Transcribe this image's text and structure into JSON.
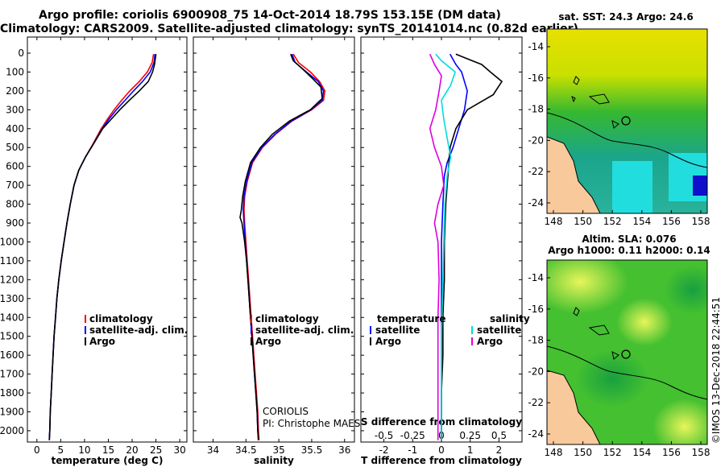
{
  "title_line1": "Argo profile: coriolis 6900908_75 14-Oct-2014 18.79S 153.15E (DM data)",
  "title_line2": "Climatology: CARS2009. Satellite-adjusted climatology: synTS_20141014.nc (0.82d earlier)",
  "colors": {
    "climatology": "#ff0000",
    "satellite": "#0000ff",
    "argo": "#000000",
    "s_satellite": "#00dddd",
    "s_argo": "#dd00dd"
  },
  "chart_data": [
    {
      "id": "temperature",
      "type": "line",
      "xlabel": "temperature (deg C)",
      "xlim": [
        -2,
        31.5
      ],
      "xticks": [
        0,
        5,
        10,
        15,
        20,
        25,
        30
      ],
      "ylim": [
        0,
        2060
      ],
      "yticks": [
        0,
        100,
        200,
        300,
        400,
        500,
        600,
        700,
        800,
        900,
        1000,
        1100,
        1200,
        1300,
        1400,
        1500,
        1600,
        1700,
        1800,
        1900,
        2000
      ],
      "legend": [
        "climatology",
        "satellite-adj. clim.",
        "Argo"
      ],
      "series": [
        {
          "name": "climatology",
          "color": "#ff0000",
          "points": [
            [
              24.5,
              5
            ],
            [
              24.2,
              50
            ],
            [
              23.2,
              100
            ],
            [
              21.5,
              150
            ],
            [
              19.5,
              200
            ],
            [
              17.8,
              250
            ],
            [
              16.2,
              300
            ],
            [
              14.8,
              350
            ],
            [
              13.5,
              400
            ],
            [
              11.8,
              480
            ],
            [
              10.2,
              550
            ],
            [
              8.8,
              620
            ],
            [
              7.8,
              700
            ],
            [
              7,
              800
            ],
            [
              6.3,
              900
            ],
            [
              5.7,
              1000
            ],
            [
              5.1,
              1100
            ],
            [
              4.6,
              1200
            ],
            [
              4.2,
              1300
            ],
            [
              3.9,
              1400
            ],
            [
              3.6,
              1500
            ],
            [
              3.4,
              1600
            ],
            [
              3.2,
              1700
            ],
            [
              3,
              1800
            ],
            [
              2.8,
              1900
            ],
            [
              2.7,
              2000
            ],
            [
              2.6,
              2050
            ]
          ]
        },
        {
          "name": "satellite-adj. clim.",
          "color": "#0000ff",
          "points": [
            [
              24.8,
              5
            ],
            [
              24.6,
              50
            ],
            [
              23.8,
              100
            ],
            [
              22.2,
              150
            ],
            [
              20.3,
              200
            ],
            [
              18.5,
              250
            ],
            [
              16.7,
              300
            ],
            [
              15.1,
              350
            ],
            [
              13.7,
              400
            ],
            [
              11.9,
              480
            ],
            [
              10.2,
              550
            ],
            [
              8.8,
              620
            ],
            [
              7.8,
              700
            ],
            [
              7,
              800
            ],
            [
              6.3,
              900
            ],
            [
              5.7,
              1000
            ],
            [
              5.1,
              1100
            ],
            [
              4.6,
              1200
            ],
            [
              4.2,
              1300
            ],
            [
              3.9,
              1400
            ],
            [
              3.6,
              1500
            ],
            [
              3.4,
              1600
            ],
            [
              3.2,
              1700
            ],
            [
              3,
              1800
            ],
            [
              2.8,
              1900
            ],
            [
              2.7,
              2000
            ],
            [
              2.6,
              2050
            ]
          ]
        },
        {
          "name": "Argo",
          "color": "#000000",
          "points": [
            [
              25,
              5
            ],
            [
              24.7,
              60
            ],
            [
              24.3,
              100
            ],
            [
              23.4,
              150
            ],
            [
              21.5,
              200
            ],
            [
              19.4,
              250
            ],
            [
              17.4,
              300
            ],
            [
              15.6,
              350
            ],
            [
              13.8,
              400
            ],
            [
              11.9,
              480
            ],
            [
              10.2,
              550
            ],
            [
              8.8,
              620
            ],
            [
              7.8,
              700
            ],
            [
              7,
              800
            ],
            [
              6.3,
              900
            ],
            [
              5.7,
              1000
            ],
            [
              5.1,
              1100
            ],
            [
              4.6,
              1200
            ],
            [
              4.2,
              1300
            ],
            [
              3.9,
              1400
            ],
            [
              3.6,
              1500
            ],
            [
              3.4,
              1600
            ],
            [
              3.2,
              1700
            ],
            [
              3,
              1800
            ],
            [
              2.8,
              1900
            ],
            [
              2.7,
              2000
            ],
            [
              2.6,
              2050
            ]
          ]
        }
      ]
    },
    {
      "id": "salinity",
      "type": "line",
      "xlabel": "salinity",
      "xlim": [
        33.7,
        36.15
      ],
      "xticks": [
        34,
        34.5,
        35,
        35.5,
        36
      ],
      "xticklabels": [
        "34",
        "34.5",
        "35",
        "35.5",
        "36"
      ],
      "ylim": [
        0,
        2060
      ],
      "legend": [
        "climatology",
        "satellite-adj. clim.",
        "Argo"
      ],
      "annotations": [
        "CORIOLIS",
        "PI: Christophe MAES"
      ],
      "series": [
        {
          "name": "climatology",
          "color": "#ff0000",
          "points": [
            [
              35.22,
              5
            ],
            [
              35.3,
              50
            ],
            [
              35.48,
              100
            ],
            [
              35.62,
              150
            ],
            [
              35.7,
              200
            ],
            [
              35.68,
              250
            ],
            [
              35.5,
              300
            ],
            [
              35.2,
              360
            ],
            [
              34.95,
              430
            ],
            [
              34.75,
              500
            ],
            [
              34.6,
              580
            ],
            [
              34.52,
              680
            ],
            [
              34.48,
              760
            ],
            [
              34.47,
              830
            ],
            [
              34.48,
              900
            ],
            [
              34.5,
              1000
            ],
            [
              34.52,
              1100
            ],
            [
              34.54,
              1200
            ],
            [
              34.56,
              1300
            ],
            [
              34.58,
              1400
            ],
            [
              34.6,
              1500
            ],
            [
              34.62,
              1600
            ],
            [
              34.64,
              1700
            ],
            [
              34.66,
              1800
            ],
            [
              34.68,
              1900
            ],
            [
              34.69,
              2000
            ],
            [
              34.7,
              2050
            ]
          ]
        },
        {
          "name": "satellite-adj. clim.",
          "color": "#0000ff",
          "points": [
            [
              35.2,
              5
            ],
            [
              35.25,
              50
            ],
            [
              35.42,
              100
            ],
            [
              35.6,
              150
            ],
            [
              35.68,
              200
            ],
            [
              35.66,
              250
            ],
            [
              35.49,
              300
            ],
            [
              35.19,
              360
            ],
            [
              34.94,
              430
            ],
            [
              34.74,
              500
            ],
            [
              34.59,
              580
            ],
            [
              34.51,
              680
            ],
            [
              34.47,
              760
            ],
            [
              34.46,
              830
            ],
            [
              34.47,
              900
            ],
            [
              34.49,
              1000
            ],
            [
              34.51,
              1100
            ],
            [
              34.53,
              1200
            ],
            [
              34.55,
              1300
            ],
            [
              34.57,
              1400
            ],
            [
              34.59,
              1500
            ],
            [
              34.61,
              1600
            ],
            [
              34.63,
              1700
            ],
            [
              34.65,
              1800
            ],
            [
              34.67,
              1900
            ],
            [
              34.68,
              2000
            ],
            [
              34.69,
              2050
            ]
          ]
        },
        {
          "name": "Argo",
          "color": "#000000",
          "points": [
            [
              35.18,
              5
            ],
            [
              35.22,
              40
            ],
            [
              35.35,
              80
            ],
            [
              35.5,
              130
            ],
            [
              35.64,
              180
            ],
            [
              35.66,
              240
            ],
            [
              35.48,
              300
            ],
            [
              35.16,
              360
            ],
            [
              34.9,
              430
            ],
            [
              34.72,
              500
            ],
            [
              34.57,
              580
            ],
            [
              34.49,
              680
            ],
            [
              34.45,
              760
            ],
            [
              34.43,
              830
            ],
            [
              34.41,
              870
            ],
            [
              34.44,
              900
            ],
            [
              34.48,
              1000
            ],
            [
              34.51,
              1100
            ],
            [
              34.53,
              1200
            ],
            [
              34.55,
              1300
            ],
            [
              34.57,
              1400
            ],
            [
              34.59,
              1500
            ],
            [
              34.61,
              1600
            ],
            [
              34.63,
              1700
            ],
            [
              34.65,
              1800
            ],
            [
              34.67,
              1900
            ],
            [
              34.68,
              2000
            ],
            [
              34.69,
              2050
            ]
          ]
        }
      ]
    },
    {
      "id": "difference",
      "type": "line",
      "xlabel": "T difference from climatology",
      "xlabel_top": "S difference from climatology",
      "xlim": [
        -2.8,
        2.8
      ],
      "xticks": [
        -2,
        -1,
        0,
        1,
        2
      ],
      "xticks_top": [
        -0.5,
        -0.25,
        0,
        0.25,
        0.5
      ],
      "xticklabels_top": [
        "-0.5",
        "-0.25",
        "0",
        "0.25",
        "0.5"
      ],
      "ylim": [
        0,
        2060
      ],
      "legend_temperature": {
        "title": "temperature",
        "items": [
          "satellite",
          "Argo"
        ]
      },
      "legend_salinity": {
        "title": "salinity",
        "items": [
          "satellite",
          "Argo"
        ]
      },
      "series": [
        {
          "name": "T satellite",
          "color": "#0000ff",
          "points": [
            [
              0.3,
              5
            ],
            [
              0.5,
              60
            ],
            [
              0.7,
              100
            ],
            [
              0.9,
              200
            ],
            [
              0.8,
              300
            ],
            [
              0.6,
              400
            ],
            [
              0.4,
              500
            ],
            [
              0.2,
              580
            ],
            [
              0.1,
              650
            ],
            [
              0.05,
              800
            ],
            [
              0,
              1000
            ],
            [
              0,
              1500
            ],
            [
              0,
              2050
            ]
          ]
        },
        {
          "name": "T Argo",
          "color": "#000000",
          "points": [
            [
              0.5,
              5
            ],
            [
              0.9,
              30
            ],
            [
              1.4,
              60
            ],
            [
              1.7,
              100
            ],
            [
              2.1,
              150
            ],
            [
              1.8,
              220
            ],
            [
              0.9,
              300
            ],
            [
              0.5,
              400
            ],
            [
              0.3,
              500
            ],
            [
              0.25,
              600
            ],
            [
              0.2,
              700
            ],
            [
              0.15,
              800
            ],
            [
              0.1,
              1000
            ],
            [
              0.1,
              1200
            ],
            [
              0.05,
              1400
            ],
            [
              0.05,
              1600
            ],
            [
              0,
              1800
            ],
            [
              0,
              2050
            ]
          ]
        },
        {
          "name": "S satellite",
          "color": "#00dddd",
          "points": [
            [
              -0.05,
              5
            ],
            [
              0,
              40
            ],
            [
              0.12,
              100
            ],
            [
              0.08,
              170
            ],
            [
              0,
              250
            ],
            [
              0.02,
              350
            ],
            [
              0.05,
              450
            ],
            [
              0.08,
              550
            ],
            [
              0.05,
              650
            ],
            [
              0.03,
              800
            ],
            [
              0.02,
              1000
            ],
            [
              0,
              1500
            ],
            [
              0,
              2050
            ]
          ]
        },
        {
          "name": "S Argo",
          "color": "#dd00dd",
          "points": [
            [
              -0.1,
              5
            ],
            [
              -0.06,
              60
            ],
            [
              0,
              120
            ],
            [
              -0.02,
              200
            ],
            [
              -0.05,
              300
            ],
            [
              -0.1,
              400
            ],
            [
              -0.06,
              500
            ],
            [
              0,
              600
            ],
            [
              0.02,
              700
            ],
            [
              -0.03,
              800
            ],
            [
              -0.06,
              900
            ],
            [
              -0.03,
              1000
            ],
            [
              -0.02,
              1200
            ],
            [
              -0.03,
              1400
            ],
            [
              -0.03,
              1600
            ],
            [
              -0.03,
              1800
            ],
            [
              -0.03,
              2050
            ]
          ]
        }
      ]
    }
  ],
  "sst_map": {
    "title": "sat. SST: 24.3 Argo: 24.6",
    "xticks": [
      "148",
      "150",
      "152",
      "154",
      "156",
      "158"
    ],
    "yticks": [
      "-14",
      "-16",
      "-18",
      "-20",
      "-22",
      "-24"
    ]
  },
  "sla_map": {
    "title_line1": "Altim. SLA: 0.076",
    "title_line2": "Argo h1000: 0.11 h2000: 0.14",
    "xticks": [
      "148",
      "150",
      "152",
      "154",
      "156",
      "158"
    ],
    "yticks": [
      "-14",
      "-16",
      "-18",
      "-20",
      "-22",
      "-24"
    ]
  },
  "credit": "©IMOS 13-Dec-2018 22:44:51"
}
